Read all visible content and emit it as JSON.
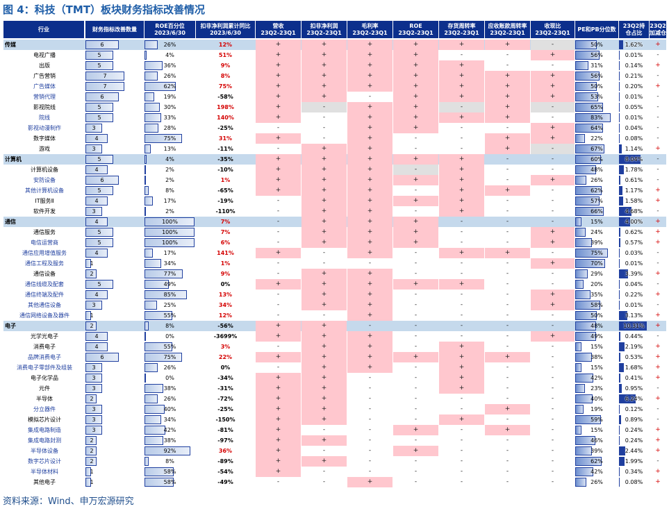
{
  "title": "图 4：科技（TMT）板块财务指标改善情况",
  "source": "资料来源：Wind、申万宏源研究",
  "headers": {
    "industry": "行业",
    "count": "财务指标改善数量",
    "roe_pct_1": "ROE百分位",
    "roe_pct_2": "2023/6/30",
    "np_1": "扣非净利润累计同比",
    "np_2": "2023/6/30",
    "rev_1": "营收",
    "rev_2": "23Q2-23Q1",
    "kf_1": "扣非净利润",
    "kf_2": "23Q2-23Q1",
    "gm_1": "毛利率",
    "gm_2": "23Q2-23Q1",
    "roe_1": "ROE",
    "roe_2": "23Q2-23Q1",
    "inv_1": "存货周转率",
    "inv_2": "23Q2-23Q1",
    "ar_1": "应收账款周转率",
    "ar_2": "23Q2-23Q1",
    "cash_1": "收现比",
    "cash_2": "23Q2-23Q1",
    "pepb": "PE和PB分位数",
    "hold_1": "23Q2持",
    "hold_2": "仓占比",
    "add_1": "23Q2",
    "add_2": "加减仓"
  },
  "colors": {
    "header_bg": "#0c2f8c",
    "pink": "#ffc7ce",
    "gray": "#e0e0e0",
    "sector": "#c5d9ec",
    "red": "#d40000"
  },
  "rows": [
    {
      "name": "传媒",
      "sector": true,
      "count": "6",
      "roe": "26%",
      "np": "12%",
      "npred": true,
      "f": [
        "+",
        "+",
        "+",
        "+",
        "+",
        "+",
        "-"
      ],
      "fc": [
        "p",
        "p",
        "p",
        "p",
        "p",
        "p",
        "g"
      ],
      "pe": "50%",
      "hold": "1.62%",
      "add": "+"
    },
    {
      "name": "电视广播",
      "count": "5",
      "roe": "4%",
      "np": "51%",
      "npred": true,
      "f": [
        "+",
        "+",
        "+",
        "+",
        "-",
        "-",
        "+"
      ],
      "fc": [
        "p",
        "p",
        "p",
        "p",
        "w",
        "w",
        "p"
      ],
      "pe": "56%",
      "hold": "0.01%",
      "add": "-"
    },
    {
      "name": "出版",
      "count": "5",
      "roe": "36%",
      "np": "9%",
      "npred": true,
      "f": [
        "+",
        "+",
        "+",
        "+",
        "+",
        "-",
        "-"
      ],
      "fc": [
        "p",
        "p",
        "p",
        "p",
        "p",
        "w",
        "w"
      ],
      "pe": "31%",
      "hold": "0.14%",
      "add": "+"
    },
    {
      "name": "广告营销",
      "count": "7",
      "roe": "26%",
      "np": "8%",
      "npred": true,
      "f": [
        "+",
        "+",
        "+",
        "+",
        "+",
        "+",
        "+"
      ],
      "fc": [
        "p",
        "p",
        "p",
        "p",
        "p",
        "p",
        "p"
      ],
      "pe": "56%",
      "hold": "0.21%",
      "add": "-"
    },
    {
      "name": "广告媒体",
      "blue": true,
      "count": "7",
      "roe": "62%",
      "np": "75%",
      "npred": true,
      "f": [
        "+",
        "+",
        "+",
        "+",
        "+",
        "+",
        "+"
      ],
      "fc": [
        "p",
        "p",
        "p",
        "p",
        "p",
        "p",
        "p"
      ],
      "pe": "50%",
      "hold": "0.20%",
      "add": "+"
    },
    {
      "name": "营销代理",
      "blue": true,
      "count": "6",
      "roe": "19%",
      "np": "-58%",
      "npred": false,
      "f": [
        "+",
        "+",
        "-",
        "+",
        "+",
        "+",
        "+"
      ],
      "fc": [
        "p",
        "p",
        "w",
        "p",
        "p",
        "p",
        "p"
      ],
      "pe": "53%",
      "hold": "0.01%",
      "add": "-"
    },
    {
      "name": "影视院线",
      "count": "5",
      "roe": "30%",
      "np": "198%",
      "npred": true,
      "f": [
        "+",
        "-",
        "+",
        "+",
        "-",
        "+",
        "-"
      ],
      "fc": [
        "p",
        "g",
        "p",
        "p",
        "g",
        "p",
        "g"
      ],
      "pe": "65%",
      "hold": "0.05%",
      "add": "-"
    },
    {
      "name": "院线",
      "blue": true,
      "count": "5",
      "roe": "33%",
      "np": "140%",
      "npred": true,
      "f": [
        "+",
        "-",
        "+",
        "+",
        "+",
        "+",
        "-"
      ],
      "fc": [
        "p",
        "w",
        "p",
        "p",
        "p",
        "p",
        "w"
      ],
      "pe": "83%",
      "hold": "0.01%",
      "add": "-"
    },
    {
      "name": "影视动漫制作",
      "blue": true,
      "count": "3",
      "roe": "28%",
      "np": "-25%",
      "npred": false,
      "f": [
        "-",
        "-",
        "+",
        "+",
        "-",
        "-",
        "+"
      ],
      "fc": [
        "w",
        "w",
        "p",
        "p",
        "w",
        "w",
        "p"
      ],
      "pe": "64%",
      "hold": "0.04%",
      "add": "-"
    },
    {
      "name": "数字媒体",
      "count": "4",
      "roe": "75%",
      "np": "31%",
      "npred": true,
      "f": [
        "+",
        "-",
        "+",
        "-",
        "-",
        "+",
        "+"
      ],
      "fc": [
        "p",
        "w",
        "p",
        "w",
        "w",
        "p",
        "p"
      ],
      "pe": "22%",
      "hold": "0.08%",
      "add": "-"
    },
    {
      "name": "游戏",
      "count": "3",
      "roe": "13%",
      "np": "-11%",
      "npred": false,
      "f": [
        "-",
        "+",
        "+",
        "-",
        "-",
        "+",
        "-"
      ],
      "fc": [
        "w",
        "p",
        "p",
        "w",
        "w",
        "p",
        "g"
      ],
      "pe": "67%",
      "hold": "1.14%",
      "add": "+"
    },
    {
      "name": "计算机",
      "sector": true,
      "count": "5",
      "roe": "4%",
      "np": "-35%",
      "npred": false,
      "f": [
        "+",
        "+",
        "+",
        "+",
        "+",
        "-",
        "-"
      ],
      "fc": [
        "p",
        "p",
        "p",
        "p",
        "p",
        "s",
        "s"
      ],
      "pe": "60%",
      "hold": "8.04%",
      "add": "-"
    },
    {
      "name": "计算机设备",
      "count": "4",
      "roe": "2%",
      "np": "-10%",
      "npred": false,
      "f": [
        "+",
        "+",
        "+",
        "-",
        "+",
        "-",
        "-"
      ],
      "fc": [
        "p",
        "p",
        "p",
        "g",
        "p",
        "w",
        "w"
      ],
      "pe": "48%",
      "hold": "1.78%",
      "add": "-"
    },
    {
      "name": "安防设备",
      "blue": true,
      "count": "6",
      "roe": "2%",
      "np": "1%",
      "npred": true,
      "f": [
        "+",
        "+",
        "+",
        "+",
        "+",
        "-",
        "+"
      ],
      "fc": [
        "p",
        "p",
        "p",
        "p",
        "p",
        "w",
        "p"
      ],
      "pe": "26%",
      "hold": "0.61%",
      "add": "-"
    },
    {
      "name": "其他计算机设备",
      "blue": true,
      "count": "5",
      "roe": "8%",
      "np": "-65%",
      "npred": false,
      "f": [
        "+",
        "+",
        "+",
        "-",
        "+",
        "+",
        "-"
      ],
      "fc": [
        "p",
        "p",
        "p",
        "w",
        "p",
        "p",
        "w"
      ],
      "pe": "62%",
      "hold": "1.17%",
      "add": "+"
    },
    {
      "name": "IT服务Ⅱ",
      "count": "4",
      "roe": "17%",
      "np": "-19%",
      "npred": false,
      "f": [
        "-",
        "+",
        "+",
        "+",
        "+",
        "-",
        "-"
      ],
      "fc": [
        "w",
        "p",
        "p",
        "p",
        "p",
        "w",
        "w"
      ],
      "pe": "57%",
      "hold": "1.58%",
      "add": "+"
    },
    {
      "name": "软件开发",
      "count": "3",
      "roe": "2%",
      "np": "-110%",
      "npred": false,
      "f": [
        "-",
        "+",
        "+",
        "-",
        "+",
        "-",
        "-"
      ],
      "fc": [
        "w",
        "p",
        "p",
        "w",
        "p",
        "w",
        "w"
      ],
      "pe": "66%",
      "hold": "4.68%",
      "add": "-"
    },
    {
      "name": "通信",
      "sector": true,
      "count": "4",
      "roe": "100%",
      "np": "7%",
      "npred": true,
      "f": [
        "-",
        "+",
        "+",
        "+",
        "-",
        "-",
        "-"
      ],
      "fc": [
        "s",
        "p",
        "p",
        "p",
        "s",
        "s",
        "s"
      ],
      "pe": "15%",
      "hold": "4.00%",
      "add": "+"
    },
    {
      "name": "通信服务",
      "count": "5",
      "roe": "100%",
      "np": "7%",
      "npred": true,
      "f": [
        "-",
        "+",
        "+",
        "+",
        "-",
        "-",
        "+"
      ],
      "fc": [
        "w",
        "p",
        "p",
        "p",
        "w",
        "w",
        "p"
      ],
      "pe": "24%",
      "hold": "0.62%",
      "add": "+"
    },
    {
      "name": "电信运营商",
      "blue": true,
      "count": "5",
      "roe": "100%",
      "np": "6%",
      "npred": true,
      "f": [
        "-",
        "+",
        "+",
        "+",
        "-",
        "-",
        "+"
      ],
      "fc": [
        "w",
        "p",
        "p",
        "p",
        "w",
        "w",
        "p"
      ],
      "pe": "39%",
      "hold": "0.57%",
      "add": "+"
    },
    {
      "name": "通信应用增值服务",
      "blue": true,
      "count": "4",
      "roe": "17%",
      "np": "141%",
      "npred": true,
      "f": [
        "+",
        "-",
        "+",
        "-",
        "+",
        "+",
        "-"
      ],
      "fc": [
        "p",
        "w",
        "p",
        "w",
        "p",
        "p",
        "w"
      ],
      "pe": "75%",
      "hold": "0.03%",
      "add": "-"
    },
    {
      "name": "通信工程及服务",
      "blue": true,
      "count": "1",
      "roe": "34%",
      "np": "1%",
      "npred": true,
      "f": [
        "-",
        "-",
        "-",
        "-",
        "-",
        "-",
        "+"
      ],
      "fc": [
        "w",
        "w",
        "w",
        "w",
        "w",
        "w",
        "p"
      ],
      "pe": "70%",
      "hold": "0.01%",
      "add": "-"
    },
    {
      "name": "通信设备",
      "count": "2",
      "roe": "77%",
      "np": "9%",
      "npred": true,
      "f": [
        "-",
        "+",
        "+",
        "-",
        "-",
        "-",
        "-"
      ],
      "fc": [
        "w",
        "p",
        "p",
        "w",
        "w",
        "w",
        "w"
      ],
      "pe": "29%",
      "hold": "3.39%",
      "add": "+"
    },
    {
      "name": "通信线缆及配套",
      "blue": true,
      "count": "5",
      "roe": "49%",
      "np": "0%",
      "npred": false,
      "f": [
        "+",
        "+",
        "+",
        "+",
        "+",
        "-",
        "-"
      ],
      "fc": [
        "p",
        "p",
        "p",
        "p",
        "p",
        "w",
        "w"
      ],
      "pe": "20%",
      "hold": "0.04%",
      "add": "-"
    },
    {
      "name": "通信终端及配件",
      "blue": true,
      "count": "4",
      "roe": "85%",
      "np": "13%",
      "npred": true,
      "f": [
        "-",
        "+",
        "+",
        "-",
        "-",
        "-",
        "+"
      ],
      "fc": [
        "w",
        "p",
        "p",
        "w",
        "w",
        "w",
        "p"
      ],
      "pe": "35%",
      "hold": "0.22%",
      "add": "+"
    },
    {
      "name": "其他通信设备",
      "blue": true,
      "count": "3",
      "roe": "25%",
      "np": "34%",
      "npred": true,
      "f": [
        "-",
        "+",
        "+",
        "-",
        "-",
        "-",
        "+"
      ],
      "fc": [
        "w",
        "p",
        "p",
        "w",
        "w",
        "w",
        "p"
      ],
      "pe": "58%",
      "hold": "0.01%",
      "add": "-"
    },
    {
      "name": "通信网络设备及器件",
      "blue": true,
      "count": "1",
      "roe": "55%",
      "np": "12%",
      "npred": true,
      "f": [
        "-",
        "-",
        "+",
        "-",
        "-",
        "-",
        "-"
      ],
      "fc": [
        "w",
        "w",
        "p",
        "w",
        "w",
        "w",
        "w"
      ],
      "pe": "50%",
      "hold": "3.13%",
      "add": "+"
    },
    {
      "name": "电子",
      "sector": true,
      "count": "2",
      "roe": "8%",
      "np": "-56%",
      "npred": false,
      "f": [
        "+",
        "+",
        "-",
        "-",
        "-",
        "-",
        "-"
      ],
      "fc": [
        "p",
        "p",
        "s",
        "s",
        "s",
        "s",
        "s"
      ],
      "pe": "48%",
      "hold": "10.31%",
      "add": "+"
    },
    {
      "name": "光学光电子",
      "count": "4",
      "roe": "0%",
      "np": "-3699%",
      "npred": false,
      "f": [
        "+",
        "+",
        "+",
        "-",
        "-",
        "-",
        "+"
      ],
      "fc": [
        "p",
        "p",
        "p",
        "w",
        "w",
        "w",
        "p"
      ],
      "pe": "49%",
      "hold": "0.44%",
      "add": "-"
    },
    {
      "name": "消费电子",
      "count": "4",
      "roe": "55%",
      "np": "3%",
      "npred": true,
      "f": [
        "-",
        "+",
        "+",
        "-",
        "+",
        "-",
        "-"
      ],
      "fc": [
        "w",
        "p",
        "p",
        "w",
        "p",
        "w",
        "w"
      ],
      "pe": "15%",
      "hold": "2.19%",
      "add": "+"
    },
    {
      "name": "品牌消费电子",
      "blue": true,
      "count": "6",
      "roe": "75%",
      "np": "22%",
      "npred": true,
      "f": [
        "+",
        "+",
        "+",
        "+",
        "+",
        "+",
        "-"
      ],
      "fc": [
        "p",
        "p",
        "p",
        "p",
        "p",
        "p",
        "w"
      ],
      "pe": "38%",
      "hold": "0.53%",
      "add": "+"
    },
    {
      "name": "消费电子零部件及组装",
      "blue": true,
      "count": "3",
      "roe": "26%",
      "np": "0%",
      "npred": false,
      "f": [
        "-",
        "+",
        "+",
        "-",
        "+",
        "-",
        "-"
      ],
      "fc": [
        "w",
        "p",
        "p",
        "w",
        "p",
        "w",
        "w"
      ],
      "pe": "15%",
      "hold": "1.68%",
      "add": "+"
    },
    {
      "name": "电子化学品",
      "count": "3",
      "roe": "0%",
      "np": "-34%",
      "npred": false,
      "f": [
        "+",
        "+",
        "-",
        "-",
        "+",
        "-",
        "-"
      ],
      "fc": [
        "p",
        "p",
        "w",
        "w",
        "p",
        "w",
        "w"
      ],
      "pe": "42%",
      "hold": "0.41%",
      "add": "+"
    },
    {
      "name": "元件",
      "count": "3",
      "roe": "38%",
      "np": "-31%",
      "npred": false,
      "f": [
        "+",
        "+",
        "-",
        "-",
        "+",
        "-",
        "-"
      ],
      "fc": [
        "p",
        "p",
        "w",
        "w",
        "p",
        "w",
        "w"
      ],
      "pe": "23%",
      "hold": "0.95%",
      "add": "-"
    },
    {
      "name": "半导体",
      "count": "2",
      "roe": "26%",
      "np": "-72%",
      "npred": false,
      "f": [
        "+",
        "+",
        "-",
        "-",
        "-",
        "-",
        "-"
      ],
      "fc": [
        "p",
        "p",
        "w",
        "w",
        "w",
        "w",
        "w"
      ],
      "pe": "40%",
      "hold": "6.24%",
      "add": "+"
    },
    {
      "name": "分立器件",
      "blue": true,
      "count": "3",
      "roe": "40%",
      "np": "-25%",
      "npred": false,
      "f": [
        "+",
        "+",
        "-",
        "-",
        "-",
        "+",
        "-"
      ],
      "fc": [
        "p",
        "p",
        "w",
        "w",
        "w",
        "p",
        "w"
      ],
      "pe": "19%",
      "hold": "0.12%",
      "add": "-"
    },
    {
      "name": "模拟芯片设计",
      "count": "3",
      "roe": "34%",
      "np": "-150%",
      "npred": false,
      "f": [
        "+",
        "+",
        "-",
        "-",
        "+",
        "-",
        "-"
      ],
      "fc": [
        "p",
        "p",
        "w",
        "w",
        "p",
        "w",
        "w"
      ],
      "pe": "59%",
      "hold": "0.89%",
      "add": "-"
    },
    {
      "name": "集成电路制造",
      "blue": true,
      "count": "3",
      "roe": "42%",
      "np": "-81%",
      "npred": false,
      "f": [
        "+",
        "-",
        "-",
        "+",
        "-",
        "+",
        "-"
      ],
      "fc": [
        "p",
        "w",
        "w",
        "p",
        "w",
        "p",
        "w"
      ],
      "pe": "15%",
      "hold": "0.24%",
      "add": "+"
    },
    {
      "name": "集成电路封测",
      "blue": true,
      "count": "2",
      "roe": "38%",
      "np": "-97%",
      "npred": false,
      "f": [
        "+",
        "+",
        "-",
        "-",
        "-",
        "-",
        "-"
      ],
      "fc": [
        "p",
        "p",
        "w",
        "w",
        "w",
        "w",
        "w"
      ],
      "pe": "46%",
      "hold": "0.24%",
      "add": "+"
    },
    {
      "name": "半导体设备",
      "blue": true,
      "count": "2",
      "roe": "92%",
      "np": "36%",
      "npred": true,
      "f": [
        "+",
        "-",
        "-",
        "+",
        "-",
        "-",
        "-"
      ],
      "fc": [
        "p",
        "w",
        "w",
        "p",
        "w",
        "w",
        "w"
      ],
      "pe": "39%",
      "hold": "2.44%",
      "add": "+"
    },
    {
      "name": "数字芯片设计",
      "blue": true,
      "count": "2",
      "roe": "8%",
      "np": "-89%",
      "npred": false,
      "f": [
        "+",
        "+",
        "-",
        "-",
        "-",
        "-",
        "-"
      ],
      "fc": [
        "p",
        "p",
        "w",
        "w",
        "w",
        "w",
        "w"
      ],
      "pe": "62%",
      "hold": "1.99%",
      "add": "-"
    },
    {
      "name": "半导体材料",
      "blue": true,
      "count": "1",
      "roe": "58%",
      "np": "-54%",
      "npred": false,
      "f": [
        "+",
        "-",
        "-",
        "-",
        "-",
        "-",
        "-"
      ],
      "fc": [
        "p",
        "w",
        "w",
        "w",
        "w",
        "w",
        "w"
      ],
      "pe": "42%",
      "hold": "0.34%",
      "add": "+"
    },
    {
      "name": "其他电子",
      "count": "1",
      "roe": "58%",
      "np": "-49%",
      "npred": false,
      "f": [
        "-",
        "-",
        "+",
        "-",
        "-",
        "-",
        "-"
      ],
      "fc": [
        "w",
        "w",
        "p",
        "w",
        "w",
        "w",
        "w"
      ],
      "pe": "26%",
      "hold": "0.08%",
      "add": "+"
    }
  ]
}
